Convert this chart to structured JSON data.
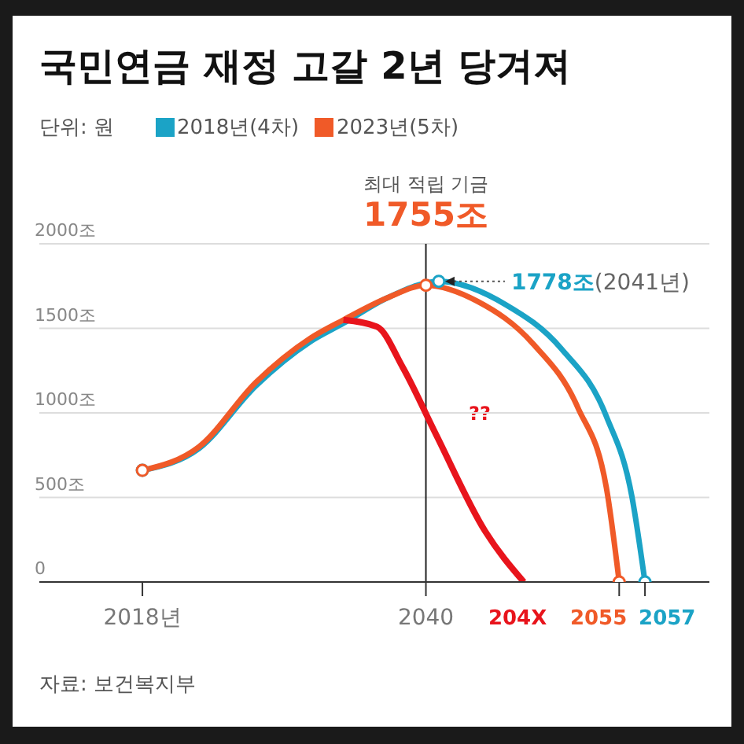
{
  "chart_data": {
    "type": "line",
    "title": "국민연금 재정 고갈 2년 당겨져",
    "series": [
      {
        "name": "2018년(4차)",
        "color": "#1ba3c6",
        "x": [
          2018,
          2022.4,
          2026.8,
          2031,
          2033.6,
          2037,
          2041,
          2046.2,
          2050.5,
          2054,
          2056,
          2057
        ],
        "values": [
          660,
          790,
          1160,
          1420,
          1530,
          1680,
          1778,
          1640,
          1380,
          980,
          500,
          0
        ]
      },
      {
        "name": "2023년(5차)",
        "color": "#f05a28",
        "x": [
          2018,
          2022.4,
          2026.8,
          2031,
          2033.6,
          2037,
          2040,
          2044,
          2048.3,
          2051.8,
          2054,
          2055
        ],
        "values": [
          660,
          800,
          1180,
          1440,
          1550,
          1680,
          1755,
          1660,
          1410,
          1030,
          560,
          0
        ]
      },
      {
        "color": "#e8141c",
        "marker": "none",
        "x": [
          2033.6,
          2036.2,
          2038.2,
          2040.8,
          2044.6,
          2047.6
        ],
        "values": [
          1550,
          1510,
          1270,
          870,
          300,
          0
        ]
      }
    ],
    "xlim": [
      2010,
      2062
    ],
    "xticks": [
      {
        "value": 2018,
        "label": "2018년"
      },
      2040,
      {
        "value": 2055,
        "label": null
      },
      {
        "value": 2057,
        "label": null
      }
    ],
    "ylim": [
      0,
      2000
    ],
    "yticks": [
      0,
      {
        "value": 500,
        "label": "500조"
      },
      {
        "value": 1000,
        "label": "1000조"
      },
      {
        "value": 1500,
        "label": "1500조"
      },
      {
        "value": 2000,
        "label": "2000조"
      }
    ],
    "grid": "y",
    "legend": "top left",
    "line_style": "solid",
    "ref_lines": [
      {
        "axis": "x",
        "value": 2040,
        "color": "#222222"
      }
    ],
    "annotations": [
      "단위: 원",
      "최대 적립 기금",
      {
        "text": "1755조",
        "x": 2040,
        "y": 1755
      },
      {
        "text": "1778조(2041년)",
        "x": 2041,
        "y": 1778
      },
      "??",
      {
        "text": "204X",
        "x": 2047.6,
        "y": 0
      },
      {
        "text": "2055",
        "x": 2055,
        "y": 0
      },
      {
        "text": "2057",
        "x": 2057,
        "y": 0
      },
      "자료: 보건복지부"
    ]
  }
}
